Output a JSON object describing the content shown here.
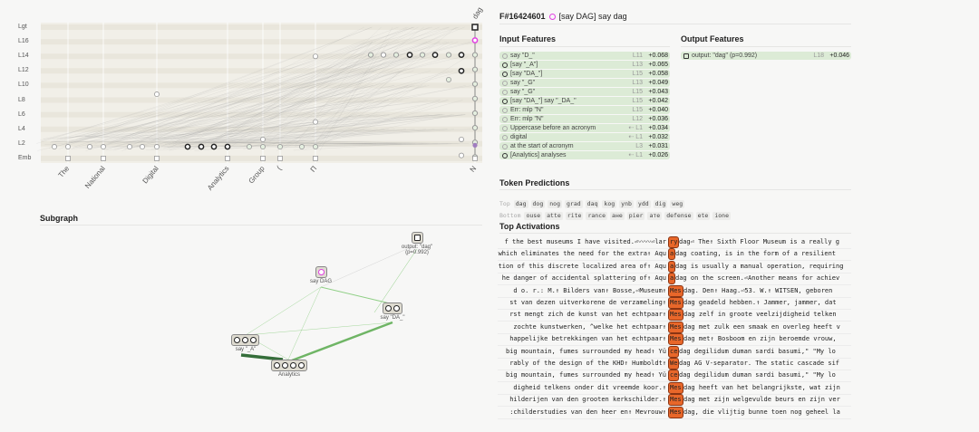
{
  "graph": {
    "layers": [
      "Lgt",
      "L16",
      "L14",
      "L12",
      "L10",
      "L8",
      "L6",
      "L4",
      "L2",
      "Emb"
    ],
    "tokens": [
      "The",
      "National",
      "Digital",
      "Analytics",
      "Group",
      "(",
      "П",
      "N"
    ],
    "output_token": "dag"
  },
  "subgraph": {
    "title": "Subgraph",
    "nodes": [
      {
        "label": "output: \"dag\"",
        "sub": "(p=0.992)",
        "circles": 1
      },
      {
        "label": "say DAG",
        "circles": 1
      },
      {
        "label": "say \"DA_\"",
        "circles": 2
      },
      {
        "label": "say \"_A\"",
        "circles": 3
      },
      {
        "label": "Analytics",
        "circles": 4
      }
    ]
  },
  "feature": {
    "id": "F#16424601",
    "name": "[say DAG] say dag",
    "color": "#e23ee2"
  },
  "input_features": {
    "title": "Input Features",
    "rows": [
      {
        "name": "say \"D_\"",
        "layer": "L11",
        "value": "+0.068",
        "dark": false
      },
      {
        "name": "[say \"_A\"]",
        "layer": "L13",
        "value": "+0.065",
        "dark": true
      },
      {
        "name": "[say \"DA_\"]",
        "layer": "L15",
        "value": "+0.058",
        "dark": true
      },
      {
        "name": "say \"_G\"",
        "layer": "L13",
        "value": "+0.049",
        "dark": false
      },
      {
        "name": "say \"_G\"",
        "layer": "L15",
        "value": "+0.043",
        "dark": false
      },
      {
        "name": "[say \"DA_\"] say \"_DA_\"",
        "layer": "L15",
        "value": "+0.042",
        "dark": true
      },
      {
        "name": "Err: mlp \"N\"",
        "layer": "L15",
        "value": "+0.040",
        "dark": false
      },
      {
        "name": "Err: mlp \"N\"",
        "layer": "L12",
        "value": "+0.036",
        "dark": false
      },
      {
        "name": "Uppercase before an acronym",
        "layer": "⇠ L1",
        "value": "+0.034",
        "dark": false
      },
      {
        "name": "digital",
        "layer": "⇠ L1",
        "value": "+0.032",
        "dark": false
      },
      {
        "name": "at the start of acronym",
        "layer": "L3",
        "value": "+0.031",
        "dark": false
      },
      {
        "name": "[Analytics] analyses",
        "layer": "⇠ L1",
        "value": "+0.026",
        "dark": true
      }
    ]
  },
  "output_features": {
    "title": "Output Features",
    "rows": [
      {
        "name": "output: \"dag\" (p=0.992)",
        "layer": "L18",
        "value": "+0.046"
      }
    ]
  },
  "token_predictions": {
    "title": "Token Predictions",
    "top_label": "Top",
    "top": [
      "dag",
      "dog",
      "nog",
      "grad",
      "daq",
      "kog",
      "ynb",
      "ydd",
      "dig",
      "weg"
    ],
    "bottom_label": "Bottom",
    "bottom": [
      "ouse",
      "atte",
      "rite",
      "rance",
      "ане",
      "pier",
      "ате",
      "defense",
      "ete",
      "ione"
    ]
  },
  "top_activations": {
    "title": "Top Activations",
    "lines": [
      {
        "pre": "f the best museums I have visited.⏎〰〰⏎lar",
        "tok": "ry",
        "post": "dag⏎ The↑ Sixth Floor Museum is a really g"
      },
      {
        "pre": "which eliminates the need for the extra↑ Aqu",
        "tok": "a",
        "post": "dag coating, is in the form of a resilient"
      },
      {
        "pre": "tion of this discrete localized area of↑ Aqu",
        "tok": "a",
        "post": "dag is usually a manual operation, requiring"
      },
      {
        "pre": "he danger of accidental splattering of↑ Aqu",
        "tok": "a",
        "post": "dag on the screen.⏎Another means for achiev"
      },
      {
        "pre": "d o. r.: M.↑ Bilders van↑ Bosse,⏎Museum↑",
        "tok": "Mes",
        "post": "dag. Den↑ Haag.⏎53. W.↑ WITSEN, geboren"
      },
      {
        "pre": "st van dezen uitverkorene de verzameling↑",
        "tok": "Mes",
        "post": "dag geadeld hebben.↑ Jammer, jammer, dat"
      },
      {
        "pre": "rst mengt zich de kunst van het echtpaar↑",
        "tok": "Mes",
        "post": "dag zelf in groote veelzijdigheid telken"
      },
      {
        "pre": "zochte kunstwerken, ^welke het echtpaar↑",
        "tok": "Mes",
        "post": "dag met zulk een smaak en overleg heeft v"
      },
      {
        "pre": "happelijke betrekkingen van het echtpaar↑",
        "tok": "Mes",
        "post": "dag met↑ Bosboom en zijn beroemde vrouw,"
      },
      {
        "pre": " big mountain, fumes surrounded my head↑ Yü",
        "tok": "ce",
        "post": " dag degilidum duman sardi basumi,\" \"My lo"
      },
      {
        "pre": "rably of the design of the KHD↑ Humboldt↑",
        "tok": "We",
        "post": "dag AG V-separator. The static cascade sif"
      },
      {
        "pre": " big mountain, fumes surrounded my head↑ Yü",
        "tok": "ce",
        "post": " dag degilidum duman sardi basumi,\" \"My lo"
      },
      {
        "pre": "digheid telkens onder dit vreemde koor.↑",
        "tok": "Mes",
        "post": "dag heeft van het belangrijkste, wat zijn"
      },
      {
        "pre": "hilderijen van den grooten kerkschilder.↑",
        "tok": "Mes",
        "post": "dag met zijn welgevulde beurs en zijn ver"
      },
      {
        "pre": ":childerstudies van den heer en↑ Mevrouw↑",
        "tok": "Mes",
        "post": "dag, die vlijtig bunne toen nog geheel la"
      }
    ]
  }
}
